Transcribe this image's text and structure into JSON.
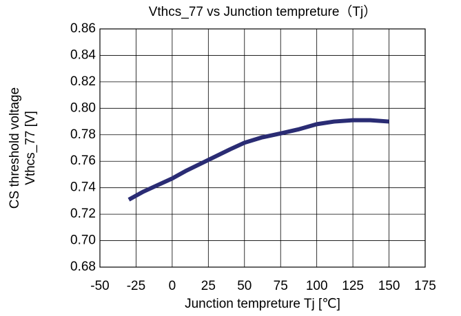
{
  "chart_data": {
    "type": "line",
    "title": "Vthcs_77 vs Junction tempreture（Tj）",
    "xlabel": "Junction tempreture Tj [℃]",
    "ylabel": [
      "CS threshold voltage",
      "Vthcs_77 [V]"
    ],
    "x": [
      -30,
      -20,
      -10,
      0,
      10,
      25,
      40,
      50,
      62,
      75,
      87,
      100,
      112,
      125,
      137,
      150
    ],
    "series": [
      {
        "name": "Vthcs_77",
        "color": "#2a2c74",
        "values": [
          0.731,
          0.737,
          0.742,
          0.747,
          0.753,
          0.761,
          0.769,
          0.774,
          0.778,
          0.781,
          0.784,
          0.788,
          0.79,
          0.791,
          0.791,
          0.79
        ]
      }
    ],
    "xlim": [
      -50,
      175
    ],
    "xticks": [
      -50,
      -25,
      0,
      25,
      50,
      75,
      100,
      125,
      150,
      175
    ],
    "ylim": [
      0.68,
      0.86
    ],
    "yticks": [
      0.68,
      {
        "value": 0.7,
        "label": "0.70"
      },
      0.72,
      0.74,
      0.76,
      0.78,
      {
        "value": 0.8,
        "label": "0.80"
      },
      0.82,
      0.84,
      0.86
    ],
    "grid": true
  }
}
